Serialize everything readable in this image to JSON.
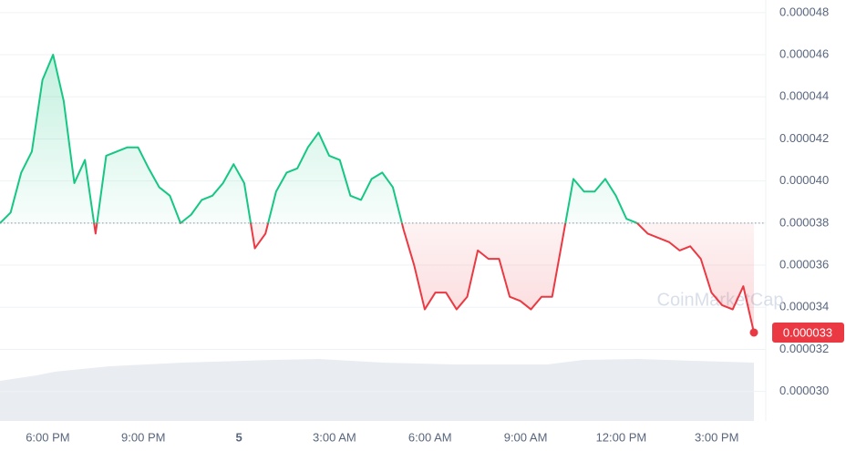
{
  "chart_data": {
    "type": "line",
    "x": [
      0,
      1,
      2,
      3,
      4,
      5,
      6,
      7,
      8,
      9,
      10,
      11,
      12,
      13,
      14,
      15,
      16,
      17,
      18,
      19,
      20,
      21,
      22,
      23,
      24,
      25,
      26,
      27,
      28,
      29,
      30,
      31,
      32,
      33,
      34,
      35,
      36,
      37,
      38,
      39,
      40,
      41,
      42,
      43,
      44,
      45,
      46,
      47,
      48,
      49,
      50,
      51,
      52,
      53,
      54,
      55,
      56,
      57,
      58,
      59,
      60,
      61,
      62,
      63,
      64,
      65,
      66,
      67,
      68,
      69,
      70,
      71
    ],
    "values": [
      3.8e-05,
      3.85e-05,
      4.04e-05,
      4.14e-05,
      4.48e-05,
      4.6e-05,
      4.38e-05,
      3.99e-05,
      4.1e-05,
      3.75e-05,
      4.12e-05,
      4.14e-05,
      4.16e-05,
      4.16e-05,
      4.06e-05,
      3.97e-05,
      3.93e-05,
      3.8e-05,
      3.84e-05,
      3.91e-05,
      3.93e-05,
      3.99e-05,
      4.08e-05,
      3.99e-05,
      3.68e-05,
      3.75e-05,
      3.95e-05,
      4.04e-05,
      4.06e-05,
      4.16e-05,
      4.23e-05,
      4.12e-05,
      4.1e-05,
      3.93e-05,
      3.91e-05,
      4.01e-05,
      4.04e-05,
      3.97e-05,
      3.77e-05,
      3.6e-05,
      3.39e-05,
      3.47e-05,
      3.47e-05,
      3.39e-05,
      3.45e-05,
      3.67e-05,
      3.63e-05,
      3.63e-05,
      3.45e-05,
      3.43e-05,
      3.39e-05,
      3.45e-05,
      3.45e-05,
      3.73e-05,
      4.01e-05,
      3.95e-05,
      3.95e-05,
      4.01e-05,
      3.93e-05,
      3.82e-05,
      3.8e-05,
      3.75e-05,
      3.73e-05,
      3.71e-05,
      3.67e-05,
      3.69e-05,
      3.63e-05,
      3.47e-05,
      3.41e-05,
      3.39e-05,
      3.5e-05,
      3.28e-05
    ],
    "xlim": [
      0,
      71
    ],
    "xticks": [
      {
        "value": 4.5,
        "label": "6:00 PM"
      },
      {
        "value": 13.5,
        "label": "9:00 PM"
      },
      {
        "value": 22.5,
        "label": "5"
      },
      {
        "value": 31.5,
        "label": "3:00 AM"
      },
      {
        "value": 40.5,
        "label": "6:00 AM"
      },
      {
        "value": 49.5,
        "label": "9:00 AM"
      },
      {
        "value": 58.5,
        "label": "12:00 PM"
      },
      {
        "value": 67.5,
        "label": "3:00 PM"
      }
    ],
    "ylim": [
      2.86e-05,
      4.86e-05
    ],
    "yticks": [
      4.8e-05,
      4.6e-05,
      4.4e-05,
      4.2e-05,
      {
        "value": 4e-05,
        "label": "0.000040"
      },
      3.8e-05,
      3.6e-05,
      3.4e-05,
      3.2e-05,
      {
        "value": 3e-05,
        "label": "0.000030"
      }
    ],
    "baseline": 3.8e-05,
    "current_price": {
      "value": 3.28e-05,
      "label": "0.000033"
    },
    "colors": {
      "up": "#16c784",
      "down": "#ea3943"
    },
    "grid": true,
    "watermark": "CoinMarketCap"
  }
}
